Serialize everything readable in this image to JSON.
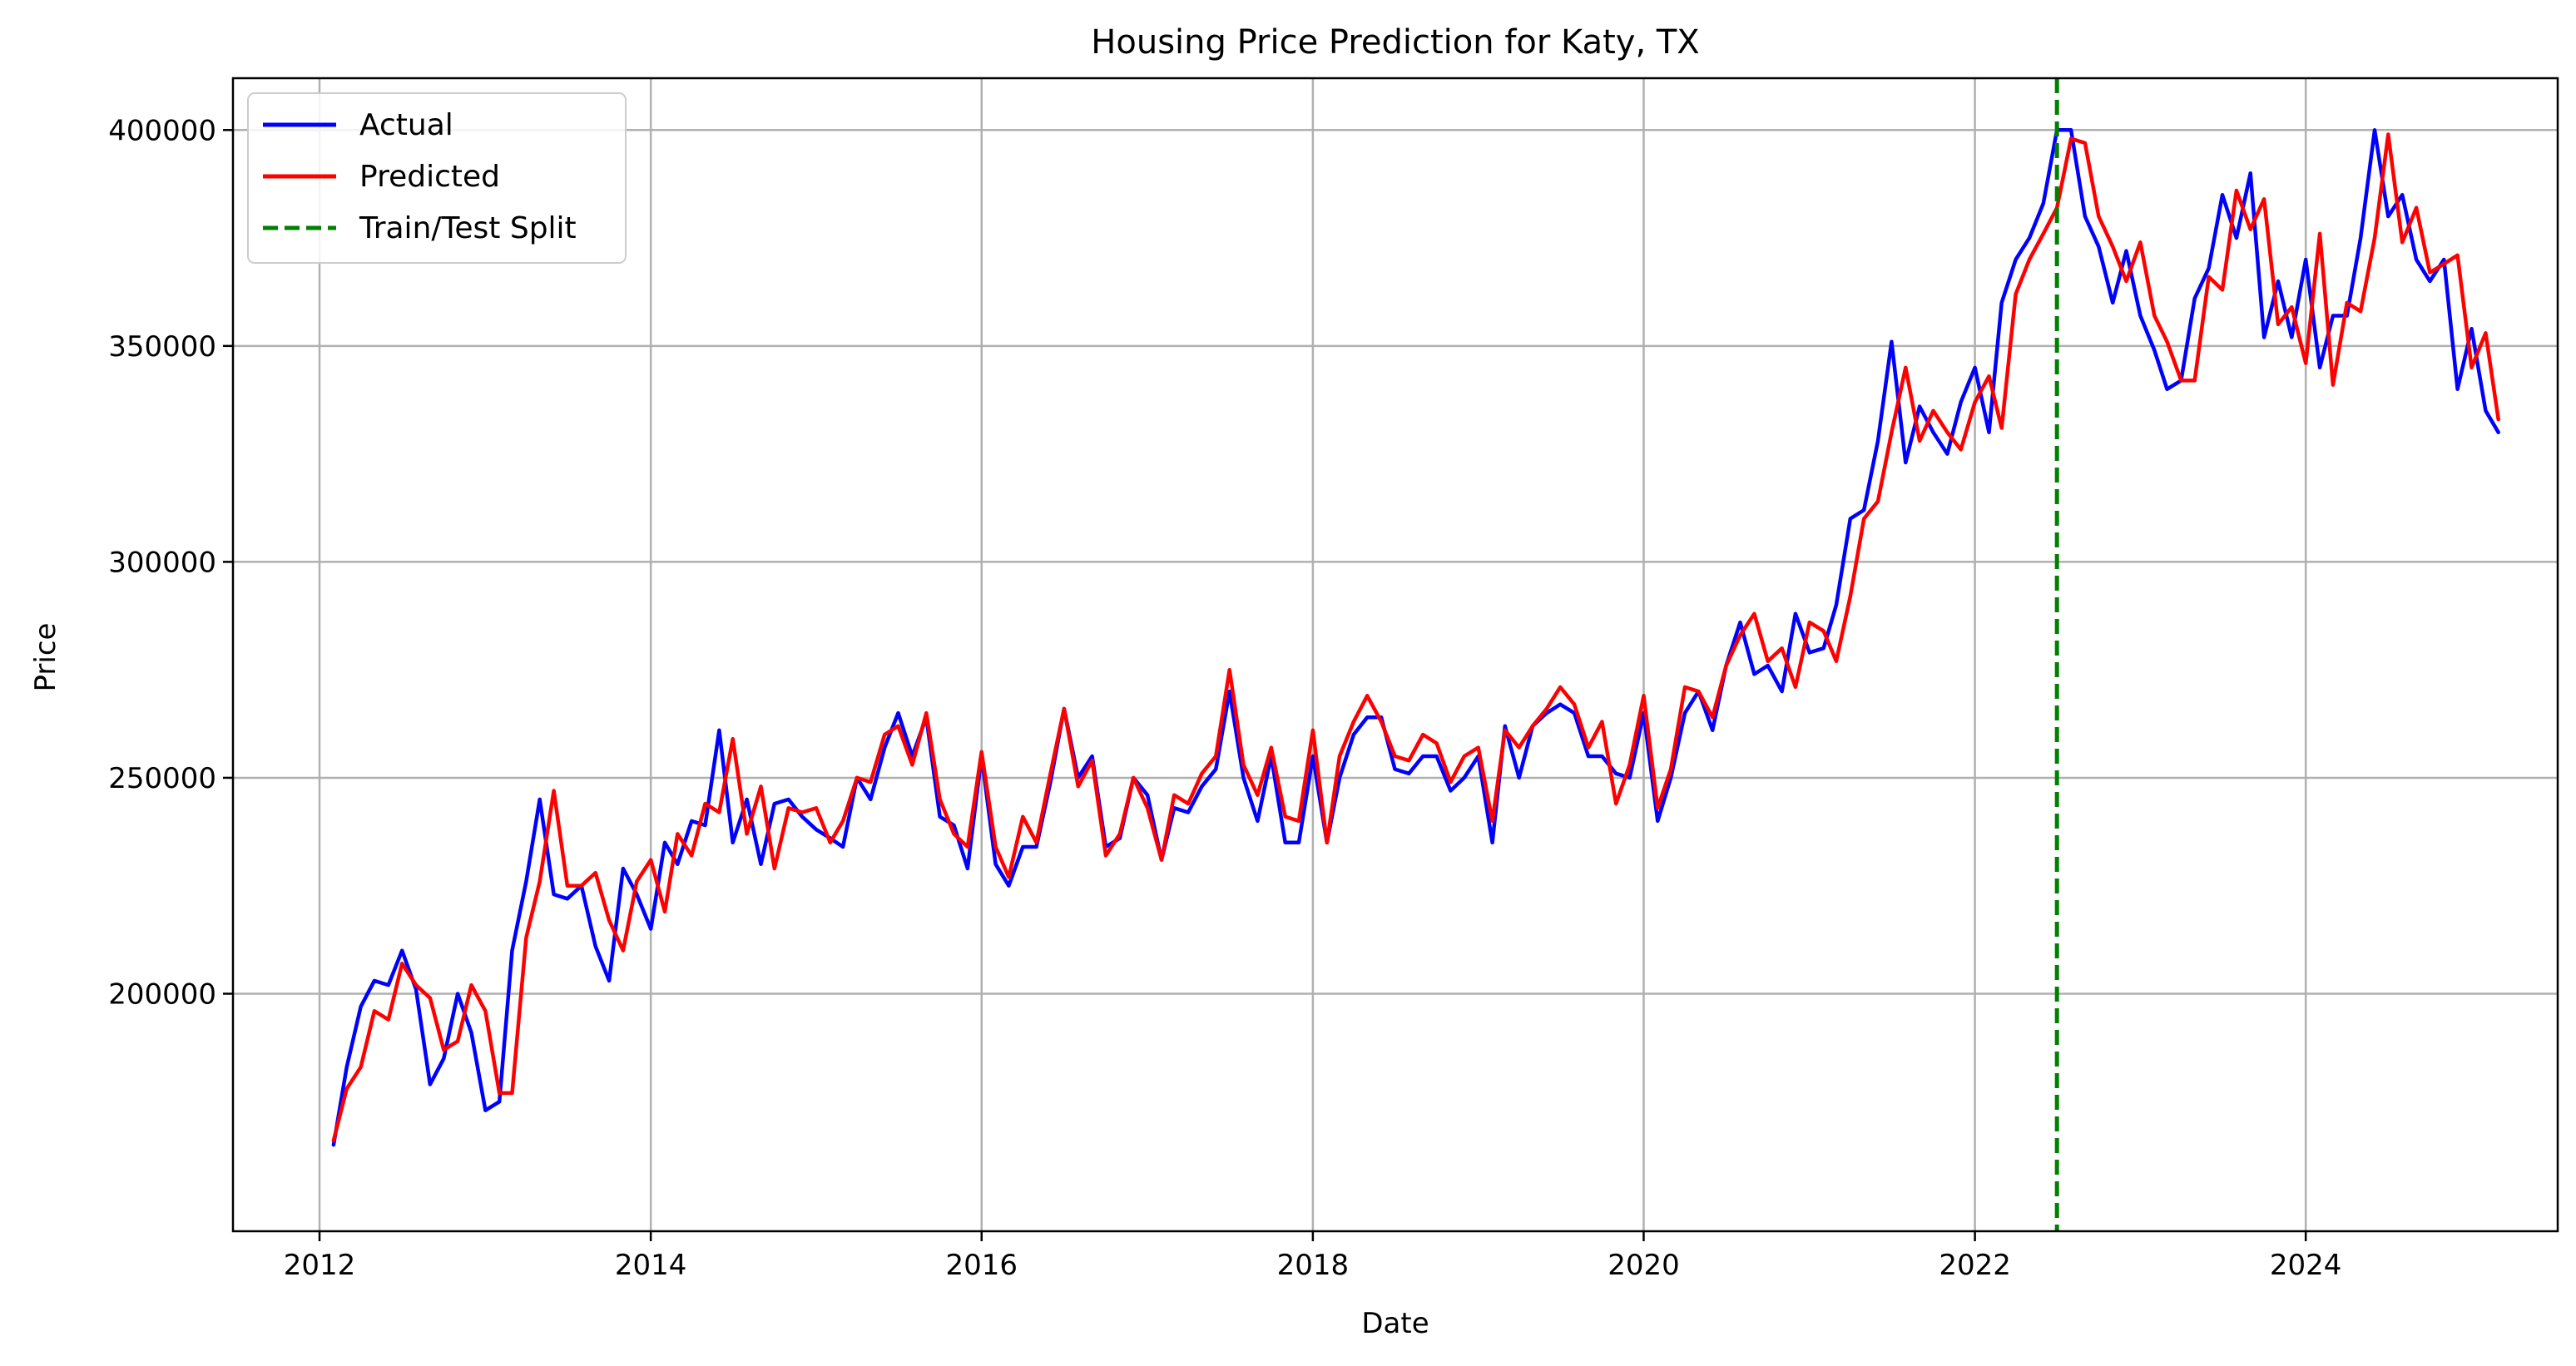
{
  "chart_data": {
    "type": "line",
    "title": "Housing Price Prediction for Katy, TX",
    "xlabel": "Date",
    "ylabel": "Price",
    "xlim": [
      "2011-06-24",
      "2025-07-10"
    ],
    "ylim": [
      145000,
      412000
    ],
    "x_ticks": [
      "2012",
      "2014",
      "2016",
      "2018",
      "2020",
      "2022",
      "2024"
    ],
    "y_ticks": [
      "200000",
      "250000",
      "300000",
      "350000",
      "400000"
    ],
    "grid": true,
    "legend_position": "upper-left",
    "split_date": "2022-07",
    "series": [
      {
        "name": "Actual",
        "color": "#0000ff",
        "style": "solid",
        "start": "2012-02",
        "values": [
          165000,
          183000,
          197000,
          203000,
          202000,
          210000,
          201000,
          179000,
          185000,
          200000,
          191000,
          173000,
          175000,
          210000,
          226000,
          245000,
          223000,
          222000,
          225000,
          211000,
          203000,
          229000,
          223000,
          215000,
          235000,
          230000,
          240000,
          239000,
          261000,
          235000,
          245000,
          230000,
          244000,
          245000,
          241000,
          238000,
          236000,
          234000,
          250000,
          245000,
          257000,
          265000,
          255000,
          264000,
          241000,
          239000,
          229000,
          255000,
          230000,
          225000,
          234000,
          234000,
          249000,
          266000,
          250000,
          255000,
          234000,
          236000,
          250000,
          246000,
          231000,
          243000,
          242000,
          248000,
          252000,
          270000,
          250000,
          240000,
          255000,
          235000,
          235000,
          255000,
          235000,
          250000,
          260000,
          264000,
          264000,
          252000,
          251000,
          255000,
          255000,
          247000,
          250000,
          255000,
          235000,
          262000,
          250000,
          262000,
          265000,
          267000,
          265000,
          255000,
          255000,
          251000,
          250000,
          265000,
          240000,
          250000,
          265000,
          270000,
          261000,
          276000,
          286000,
          274000,
          276000,
          270000,
          288000,
          279000,
          280000,
          290000,
          310000,
          312000,
          328000,
          351000,
          323000,
          336000,
          330000,
          325000,
          337000,
          345000,
          330000,
          360000,
          370000,
          375000,
          383000,
          400000,
          400000,
          380000,
          373000,
          360000,
          372000,
          357000,
          349000,
          340000,
          342000,
          361000,
          368000,
          385000,
          375000,
          390000,
          352000,
          365000,
          352000,
          370000,
          345000,
          357000,
          357000,
          375000,
          400000,
          380000,
          385000,
          370000,
          365000,
          370000,
          340000,
          354000,
          335000,
          330000
        ]
      },
      {
        "name": "Predicted",
        "color": "#ff0000",
        "style": "solid",
        "start": "2012-02",
        "values": [
          166000,
          178000,
          183000,
          196000,
          194000,
          207000,
          202000,
          199000,
          187000,
          189000,
          202000,
          196000,
          177000,
          177000,
          213000,
          226000,
          247000,
          225000,
          225000,
          228000,
          217000,
          210000,
          226000,
          231000,
          219000,
          237000,
          232000,
          244000,
          242000,
          259000,
          237000,
          248000,
          229000,
          243000,
          242000,
          243000,
          235000,
          240000,
          250000,
          249000,
          260000,
          262000,
          253000,
          265000,
          245000,
          237000,
          234000,
          256000,
          234000,
          227000,
          241000,
          235000,
          251000,
          266000,
          248000,
          254000,
          232000,
          237000,
          250000,
          243000,
          231000,
          246000,
          244000,
          251000,
          255000,
          275000,
          253000,
          246000,
          257000,
          241000,
          240000,
          261000,
          235000,
          255000,
          263000,
          269000,
          263000,
          255000,
          254000,
          260000,
          258000,
          249000,
          255000,
          257000,
          240000,
          261000,
          257000,
          262000,
          266000,
          271000,
          267000,
          257000,
          263000,
          244000,
          253000,
          269000,
          243000,
          252000,
          271000,
          270000,
          264000,
          276000,
          283000,
          288000,
          277000,
          280000,
          271000,
          286000,
          284000,
          277000,
          292000,
          310000,
          314000,
          330000,
          345000,
          328000,
          335000,
          330000,
          326000,
          337000,
          343000,
          331000,
          362000,
          370000,
          376000,
          382000,
          398000,
          397000,
          380000,
          373000,
          365000,
          374000,
          357000,
          351000,
          342000,
          342000,
          366000,
          363000,
          386000,
          377000,
          384000,
          355000,
          359000,
          346000,
          376000,
          341000,
          360000,
          358000,
          375000,
          399000,
          374000,
          382000,
          367000,
          369000,
          371000,
          345000,
          353000,
          333000
        ]
      },
      {
        "name": "Train/Test Split",
        "color": "#008000",
        "style": "dashed"
      }
    ]
  }
}
